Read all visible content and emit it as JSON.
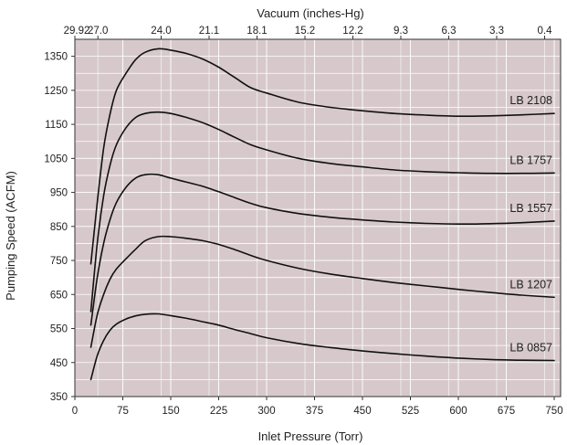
{
  "colors": {
    "plot_background": "#d7c9cb",
    "grid": "#ffffff",
    "curve": "#111111",
    "text": "#222222"
  },
  "chart_data": {
    "type": "line",
    "title": "",
    "xlabel": "Inlet Pressure (Torr)",
    "ylabel": "Pumping Speed (ACFM)",
    "x2label": "Vacuum (inches-Hg)",
    "xlim": [
      0,
      760
    ],
    "ylim": [
      350,
      1400
    ],
    "xticks": [
      0,
      75,
      150,
      225,
      300,
      375,
      450,
      525,
      600,
      675,
      750
    ],
    "yticks": [
      350,
      450,
      550,
      650,
      750,
      850,
      950,
      1050,
      1150,
      1250,
      1350
    ],
    "yminor": [
      400,
      500,
      600,
      700,
      800,
      900,
      1000,
      1100,
      1200,
      1300
    ],
    "x2ticks": [
      {
        "at": 0,
        "label": "29.92"
      },
      {
        "at": 36,
        "label": "27.0"
      },
      {
        "at": 135,
        "label": "24.0"
      },
      {
        "at": 210,
        "label": "21.1"
      },
      {
        "at": 285,
        "label": "18.1"
      },
      {
        "at": 360,
        "label": "15.2"
      },
      {
        "at": 435,
        "label": "12.2"
      },
      {
        "at": 510,
        "label": "9.3"
      },
      {
        "at": 585,
        "label": "6.3"
      },
      {
        "at": 660,
        "label": "3.3"
      },
      {
        "at": 735,
        "label": "0.4"
      }
    ],
    "grid": true,
    "series": [
      {
        "name": "LB 2108",
        "points": [
          [
            25,
            740
          ],
          [
            35,
            920
          ],
          [
            45,
            1080
          ],
          [
            55,
            1180
          ],
          [
            65,
            1250
          ],
          [
            80,
            1300
          ],
          [
            95,
            1340
          ],
          [
            110,
            1362
          ],
          [
            130,
            1372
          ],
          [
            150,
            1368
          ],
          [
            175,
            1358
          ],
          [
            200,
            1342
          ],
          [
            225,
            1318
          ],
          [
            250,
            1288
          ],
          [
            275,
            1258
          ],
          [
            300,
            1242
          ],
          [
            350,
            1215
          ],
          [
            400,
            1200
          ],
          [
            450,
            1190
          ],
          [
            500,
            1182
          ],
          [
            550,
            1177
          ],
          [
            600,
            1174
          ],
          [
            650,
            1175
          ],
          [
            700,
            1178
          ],
          [
            750,
            1182
          ]
        ]
      },
      {
        "name": "LB 1757",
        "points": [
          [
            25,
            600
          ],
          [
            35,
            800
          ],
          [
            45,
            940
          ],
          [
            55,
            1030
          ],
          [
            65,
            1090
          ],
          [
            80,
            1140
          ],
          [
            95,
            1170
          ],
          [
            110,
            1182
          ],
          [
            130,
            1186
          ],
          [
            150,
            1182
          ],
          [
            175,
            1170
          ],
          [
            200,
            1155
          ],
          [
            225,
            1135
          ],
          [
            250,
            1112
          ],
          [
            275,
            1090
          ],
          [
            300,
            1075
          ],
          [
            350,
            1050
          ],
          [
            400,
            1035
          ],
          [
            450,
            1025
          ],
          [
            500,
            1016
          ],
          [
            550,
            1011
          ],
          [
            600,
            1008
          ],
          [
            650,
            1006
          ],
          [
            700,
            1006
          ],
          [
            750,
            1007
          ]
        ]
      },
      {
        "name": "LB 1557",
        "points": [
          [
            25,
            560
          ],
          [
            35,
            700
          ],
          [
            45,
            800
          ],
          [
            55,
            870
          ],
          [
            65,
            920
          ],
          [
            80,
            965
          ],
          [
            95,
            992
          ],
          [
            110,
            1002
          ],
          [
            130,
            1002
          ],
          [
            150,
            992
          ],
          [
            175,
            980
          ],
          [
            200,
            968
          ],
          [
            225,
            952
          ],
          [
            250,
            935
          ],
          [
            275,
            918
          ],
          [
            300,
            905
          ],
          [
            350,
            888
          ],
          [
            400,
            877
          ],
          [
            450,
            869
          ],
          [
            500,
            863
          ],
          [
            550,
            859
          ],
          [
            600,
            857
          ],
          [
            650,
            858
          ],
          [
            700,
            861
          ],
          [
            750,
            866
          ]
        ]
      },
      {
        "name": "LB 1207",
        "points": [
          [
            25,
            495
          ],
          [
            35,
            590
          ],
          [
            45,
            650
          ],
          [
            55,
            695
          ],
          [
            65,
            725
          ],
          [
            80,
            755
          ],
          [
            95,
            783
          ],
          [
            110,
            808
          ],
          [
            130,
            820
          ],
          [
            150,
            820
          ],
          [
            175,
            815
          ],
          [
            200,
            808
          ],
          [
            225,
            797
          ],
          [
            250,
            782
          ],
          [
            275,
            765
          ],
          [
            300,
            750
          ],
          [
            350,
            727
          ],
          [
            400,
            710
          ],
          [
            450,
            697
          ],
          [
            500,
            685
          ],
          [
            550,
            675
          ],
          [
            600,
            665
          ],
          [
            650,
            656
          ],
          [
            700,
            648
          ],
          [
            750,
            642
          ]
        ]
      },
      {
        "name": "LB 0857",
        "points": [
          [
            25,
            400
          ],
          [
            35,
            470
          ],
          [
            45,
            515
          ],
          [
            55,
            545
          ],
          [
            65,
            563
          ],
          [
            80,
            578
          ],
          [
            95,
            587
          ],
          [
            110,
            592
          ],
          [
            130,
            593
          ],
          [
            150,
            588
          ],
          [
            175,
            580
          ],
          [
            200,
            570
          ],
          [
            225,
            560
          ],
          [
            250,
            547
          ],
          [
            275,
            535
          ],
          [
            300,
            523
          ],
          [
            350,
            506
          ],
          [
            400,
            494
          ],
          [
            450,
            484
          ],
          [
            500,
            476
          ],
          [
            550,
            469
          ],
          [
            600,
            463
          ],
          [
            650,
            459
          ],
          [
            700,
            457
          ],
          [
            750,
            456
          ]
        ]
      }
    ]
  }
}
